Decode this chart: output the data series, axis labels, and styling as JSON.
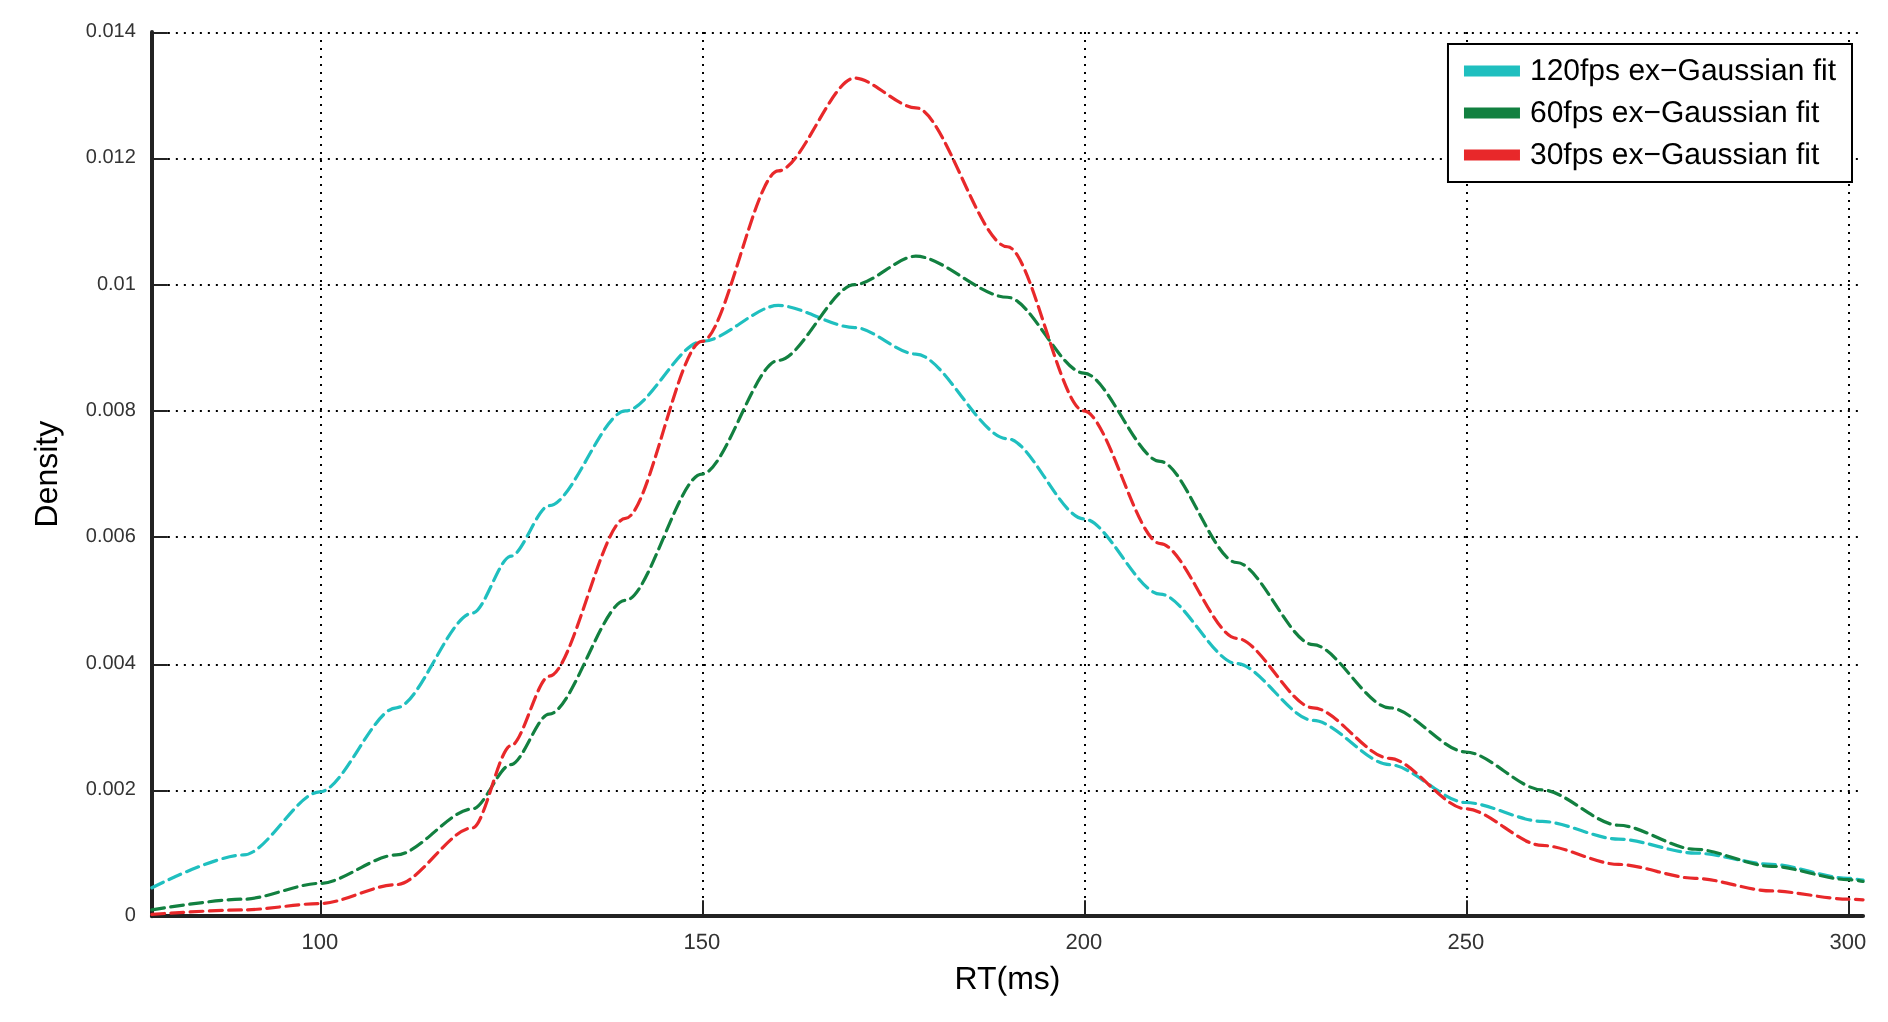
{
  "chart_data": {
    "type": "line",
    "xlabel": "RT(ms)",
    "ylabel": "Density",
    "x": [
      78,
      90,
      100,
      110,
      120,
      125,
      130,
      140,
      150,
      160,
      170,
      178,
      190,
      200,
      210,
      220,
      230,
      240,
      250,
      260,
      270,
      280,
      290,
      300,
      302
    ],
    "series": [
      {
        "name": "120fps ex−Gaussian fit",
        "color": "#1fbfbf",
        "values": [
          0.00045,
          0.00097,
          0.00197,
          0.0033,
          0.0048,
          0.0057,
          0.0065,
          0.008,
          0.0091,
          0.00967,
          0.00932,
          0.0089,
          0.00756,
          0.00629,
          0.0051,
          0.004,
          0.0031,
          0.0024,
          0.0018,
          0.0015,
          0.00122,
          0.001,
          0.00082,
          0.0006,
          0.00057
        ]
      },
      {
        "name": "60fps ex−Gaussian fit",
        "color": "#128040",
        "values": [
          0.0001,
          0.00027,
          0.00052,
          0.00097,
          0.0017,
          0.0024,
          0.0032,
          0.005,
          0.007,
          0.0088,
          0.01,
          0.01045,
          0.0098,
          0.0086,
          0.0072,
          0.0056,
          0.0043,
          0.0033,
          0.0026,
          0.002,
          0.00144,
          0.00106,
          0.00079,
          0.00058,
          0.00055
        ]
      },
      {
        "name": "30fps ex−Gaussian fit",
        "color": "#e8282a",
        "values": [
          3e-05,
          0.0001,
          0.0002,
          0.0005,
          0.0014,
          0.0027,
          0.0038,
          0.0063,
          0.0091,
          0.0118,
          0.01327,
          0.0128,
          0.0106,
          0.008,
          0.0059,
          0.0044,
          0.0033,
          0.0025,
          0.0017,
          0.00112,
          0.00082,
          0.0006,
          0.0004,
          0.00027,
          0.00026
        ]
      }
    ],
    "xlim": [
      78,
      302
    ],
    "xticks": [
      100,
      150,
      200,
      250,
      300
    ],
    "ylim": [
      0,
      0.014
    ],
    "yticks": [
      0,
      0.002,
      0.004,
      0.006,
      0.008,
      0.01,
      0.012,
      0.014
    ],
    "grid": true,
    "legend": "top right",
    "line_style": "dashed",
    "marker": "none"
  }
}
